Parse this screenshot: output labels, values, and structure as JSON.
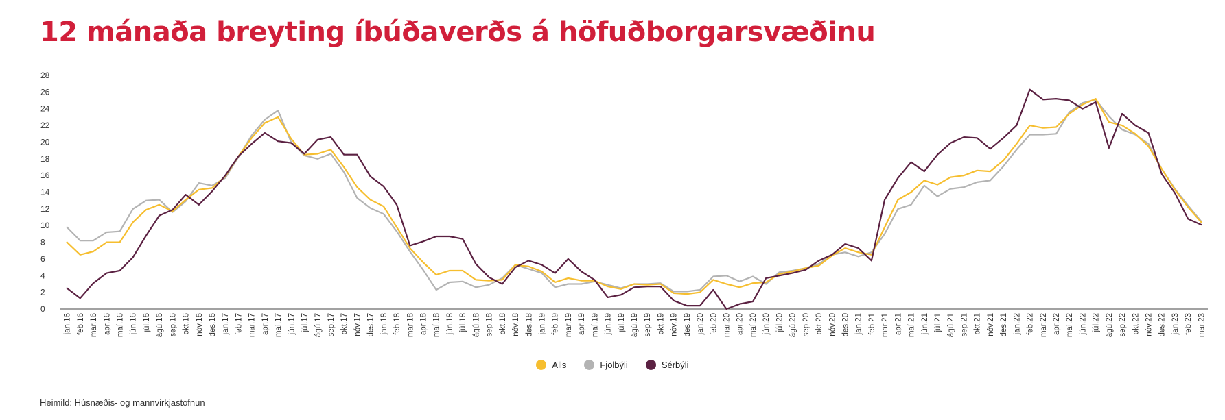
{
  "title": "12 mánaða breyting íbúðaverðs á höfuðborgarsvæðinu",
  "source": "Heimild: Húsnæðis- og mannvirkjastofnun",
  "colors": {
    "title": "#d11f3a",
    "axis": "#444444",
    "text": "#333333"
  },
  "chart_data": {
    "type": "line",
    "xlabel": "",
    "ylabel": "",
    "ylim": [
      0,
      28
    ],
    "yticks": [
      0,
      2,
      4,
      6,
      8,
      10,
      12,
      14,
      16,
      18,
      20,
      22,
      24,
      26,
      28
    ],
    "grid": false,
    "legend": "bottom-center",
    "categories": [
      "jan.16",
      "feb.16",
      "mar.16",
      "apr.16",
      "maí.16",
      "jún.16",
      "júl.16",
      "ágú.16",
      "sep.16",
      "okt.16",
      "nóv.16",
      "des.16",
      "jan.17",
      "feb.17",
      "mar.17",
      "apr.17",
      "maí.17",
      "jún.17",
      "júl.17",
      "ágú.17",
      "sep.17",
      "okt.17",
      "nóv.17",
      "des.17",
      "jan.18",
      "feb.18",
      "mar.18",
      "apr.18",
      "maí.18",
      "jún.18",
      "júl.18",
      "ágú.18",
      "sep.18",
      "okt.18",
      "nóv.18",
      "des.18",
      "jan.19",
      "feb.19",
      "mar.19",
      "apr.19",
      "maí.19",
      "jún.19",
      "júl.19",
      "ágú.19",
      "sep.19",
      "okt.19",
      "nóv.19",
      "des.19",
      "jan.20",
      "feb.20",
      "mar.20",
      "apr.20",
      "maí.20",
      "jún.20",
      "júl.20",
      "ágú.20",
      "sep.20",
      "okt.20",
      "nóv.20",
      "des.20",
      "jan.21",
      "feb.21",
      "mar.21",
      "apr.21",
      "maí.21",
      "jún.21",
      "júl.21",
      "ágú.21",
      "sep.21",
      "okt.21",
      "nóv.21",
      "des.21",
      "jan.22",
      "feb.22",
      "mar.22",
      "apr.22",
      "maí.22",
      "jún.22",
      "júl.22",
      "ágú.22",
      "sep.22",
      "okt.22",
      "nóv.22",
      "des.22",
      "jan.23",
      "feb.23",
      "mar.23"
    ],
    "series": [
      {
        "name": "Alls",
        "color": "#f6be2f",
        "values": [
          8.0,
          6.5,
          6.9,
          8.0,
          8.0,
          10.4,
          11.9,
          12.5,
          11.7,
          13.1,
          14.3,
          14.5,
          15.9,
          18.3,
          20.5,
          22.3,
          23.0,
          20.4,
          18.5,
          18.6,
          19.1,
          17.0,
          14.6,
          13.1,
          12.3,
          9.8,
          7.3,
          5.6,
          4.1,
          4.6,
          4.6,
          3.5,
          3.4,
          3.5,
          5.3,
          5.1,
          4.5,
          3.2,
          3.7,
          3.4,
          3.4,
          2.7,
          2.4,
          3.0,
          2.9,
          3.0,
          1.9,
          1.8,
          2.0,
          3.5,
          3.0,
          2.6,
          3.1,
          3.2,
          4.2,
          4.5,
          4.9,
          5.2,
          6.4,
          7.3,
          6.8,
          6.5,
          9.8,
          13.1,
          14.0,
          15.4,
          14.9,
          15.8,
          16.0,
          16.6,
          16.5,
          17.8,
          19.8,
          22.0,
          21.7,
          21.8,
          23.4,
          24.5,
          25.2,
          22.4,
          22.0,
          21.0,
          19.5,
          16.8,
          14.3,
          12.2,
          10.4
        ]
      },
      {
        "name": "Fjölbýli",
        "color": "#b3b3b3",
        "values": [
          9.8,
          8.2,
          8.2,
          9.2,
          9.3,
          12.0,
          13.0,
          13.1,
          11.6,
          12.9,
          15.1,
          14.8,
          15.7,
          18.2,
          20.8,
          22.7,
          23.8,
          20.0,
          18.4,
          18.0,
          18.6,
          16.4,
          13.3,
          12.1,
          11.4,
          9.3,
          6.9,
          4.7,
          2.3,
          3.2,
          3.3,
          2.6,
          2.9,
          3.7,
          5.3,
          4.8,
          4.3,
          2.6,
          3.0,
          3.0,
          3.3,
          2.9,
          2.5,
          3.0,
          3.0,
          3.1,
          2.1,
          2.1,
          2.3,
          3.9,
          4.0,
          3.3,
          3.9,
          3.0,
          4.4,
          4.6,
          4.9,
          5.4,
          6.5,
          6.8,
          6.3,
          6.8,
          9.0,
          12.0,
          12.5,
          14.8,
          13.5,
          14.4,
          14.6,
          15.2,
          15.4,
          17.1,
          19.1,
          20.9,
          20.9,
          21.0,
          23.6,
          24.7,
          25.1,
          23.1,
          21.5,
          20.9,
          19.8,
          16.8,
          14.4,
          12.4,
          10.5
        ]
      },
      {
        "name": "Sérbýli",
        "color": "#5b2142",
        "values": [
          2.5,
          1.3,
          3.1,
          4.3,
          4.6,
          6.2,
          8.8,
          11.2,
          11.9,
          13.7,
          12.5,
          14.1,
          16.0,
          18.3,
          19.8,
          21.1,
          20.1,
          19.9,
          18.6,
          20.3,
          20.6,
          18.5,
          18.5,
          15.9,
          14.7,
          12.5,
          7.6,
          8.1,
          8.7,
          8.7,
          8.4,
          5.4,
          3.8,
          3.0,
          5.0,
          5.8,
          5.3,
          4.3,
          6.0,
          4.5,
          3.5,
          1.4,
          1.7,
          2.6,
          2.7,
          2.7,
          1.0,
          0.4,
          0.4,
          2.3,
          0.0,
          0.6,
          0.9,
          3.7,
          4.0,
          4.3,
          4.7,
          5.8,
          6.5,
          7.8,
          7.3,
          5.8,
          13.1,
          15.7,
          17.6,
          16.5,
          18.5,
          19.9,
          20.6,
          20.5,
          19.2,
          20.5,
          22.0,
          26.3,
          25.1,
          25.2,
          25.0,
          24.0,
          24.8,
          19.3,
          23.4,
          22.0,
          21.1,
          16.2,
          13.9,
          10.8,
          10.1
        ]
      }
    ]
  }
}
